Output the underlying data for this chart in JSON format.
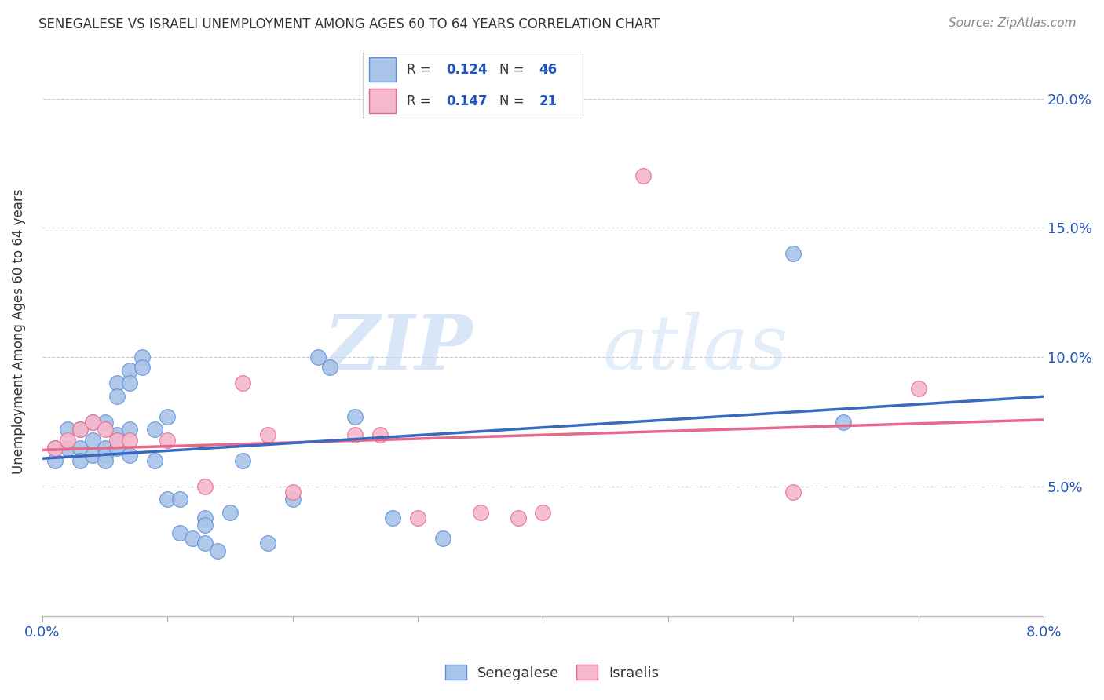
{
  "title": "SENEGALESE VS ISRAELI UNEMPLOYMENT AMONG AGES 60 TO 64 YEARS CORRELATION CHART",
  "source": "Source: ZipAtlas.com",
  "ylabel": "Unemployment Among Ages 60 to 64 years",
  "senegalese_color": "#a8c4e8",
  "israelis_color": "#f5b8cc",
  "senegalese_edge_color": "#5b8dd9",
  "israelis_edge_color": "#e8688a",
  "senegalese_line_color": "#3a6abf",
  "israelis_line_color": "#e8688a",
  "background_color": "#ffffff",
  "grid_color": "#cccccc",
  "text_blue": "#2255bb",
  "text_dark": "#333333",
  "source_color": "#888888",
  "xlim": [
    0.0,
    0.08
  ],
  "ylim": [
    0.0,
    0.22
  ],
  "senegalese_x": [
    0.001,
    0.001,
    0.002,
    0.002,
    0.003,
    0.003,
    0.003,
    0.004,
    0.004,
    0.004,
    0.005,
    0.005,
    0.005,
    0.005,
    0.006,
    0.006,
    0.006,
    0.006,
    0.007,
    0.007,
    0.007,
    0.007,
    0.008,
    0.008,
    0.009,
    0.009,
    0.01,
    0.01,
    0.011,
    0.011,
    0.012,
    0.013,
    0.013,
    0.013,
    0.014,
    0.015,
    0.016,
    0.018,
    0.02,
    0.022,
    0.023,
    0.025,
    0.028,
    0.032,
    0.06,
    0.064
  ],
  "senegalese_y": [
    0.065,
    0.06,
    0.072,
    0.065,
    0.072,
    0.065,
    0.06,
    0.075,
    0.068,
    0.062,
    0.075,
    0.065,
    0.062,
    0.06,
    0.09,
    0.085,
    0.07,
    0.065,
    0.095,
    0.09,
    0.072,
    0.062,
    0.1,
    0.096,
    0.072,
    0.06,
    0.077,
    0.045,
    0.045,
    0.032,
    0.03,
    0.038,
    0.035,
    0.028,
    0.025,
    0.04,
    0.06,
    0.028,
    0.045,
    0.1,
    0.096,
    0.077,
    0.038,
    0.03,
    0.14,
    0.075
  ],
  "israelis_x": [
    0.001,
    0.002,
    0.003,
    0.004,
    0.005,
    0.006,
    0.007,
    0.01,
    0.013,
    0.016,
    0.018,
    0.02,
    0.025,
    0.027,
    0.03,
    0.035,
    0.038,
    0.04,
    0.048,
    0.06,
    0.07
  ],
  "israelis_y": [
    0.065,
    0.068,
    0.072,
    0.075,
    0.072,
    0.068,
    0.068,
    0.068,
    0.05,
    0.09,
    0.07,
    0.048,
    0.07,
    0.07,
    0.038,
    0.04,
    0.038,
    0.04,
    0.17,
    0.048,
    0.088
  ],
  "legend_label_sen": "Senegalese",
  "legend_label_isr": "Israelis"
}
